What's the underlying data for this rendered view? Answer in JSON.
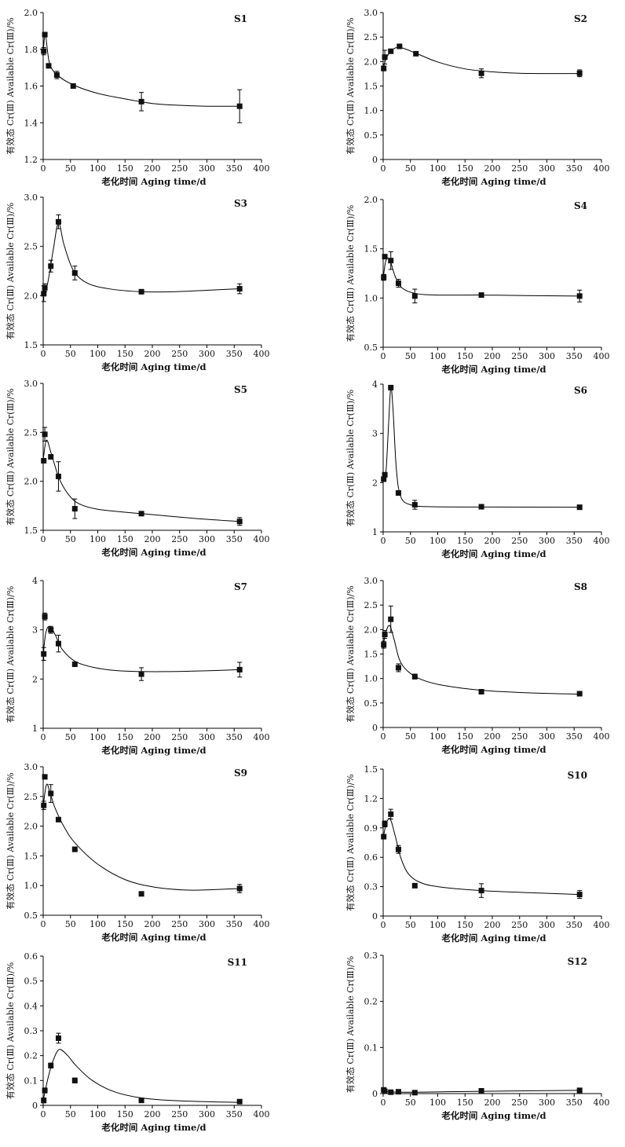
{
  "chart_data": [
    {
      "type": "scatter",
      "title": "S1",
      "xlabel": "老化时间 Aging time/d",
      "ylabel": "有效态 Cr(Ⅲ) Available Cr(Ⅲ)/%",
      "xlim": [
        0,
        400
      ],
      "xticks": [
        0,
        50,
        100,
        150,
        200,
        250,
        300,
        350,
        400
      ],
      "ylim": [
        1.2,
        2.0
      ],
      "yticks": [
        "1.2",
        "1.4",
        "1.6",
        "1.8",
        "2.0"
      ],
      "points": [
        {
          "x": 1,
          "y": 1.79,
          "err": 0.02
        },
        {
          "x": 3,
          "y": 1.88,
          "err": 0.01
        },
        {
          "x": 10,
          "y": 1.71,
          "err": 0.01
        },
        {
          "x": 25,
          "y": 1.66,
          "err": 0.02
        },
        {
          "x": 55,
          "y": 1.6,
          "err": 0.01
        },
        {
          "x": 180,
          "y": 1.515,
          "err": 0.05
        },
        {
          "x": 360,
          "y": 1.49,
          "err": 0.09
        }
      ],
      "curve": [
        [
          0,
          1.78
        ],
        [
          4,
          1.88
        ],
        [
          12,
          1.72
        ],
        [
          30,
          1.65
        ],
        [
          60,
          1.6
        ],
        [
          100,
          1.56
        ],
        [
          150,
          1.53
        ],
        [
          200,
          1.505
        ],
        [
          250,
          1.495
        ],
        [
          300,
          1.49
        ],
        [
          360,
          1.49
        ]
      ]
    },
    {
      "type": "scatter",
      "title": "S2",
      "xlabel": "老化时间 Aging time/d",
      "ylabel": "有效态 Cr(Ⅲ) Available Cr(Ⅲ)/%",
      "xlim": [
        0,
        400
      ],
      "xticks": [
        0,
        50,
        100,
        150,
        200,
        250,
        300,
        350,
        400
      ],
      "ylim": [
        0,
        3.0
      ],
      "yticks": [
        "0",
        "0.5",
        "1.0",
        "1.5",
        "2.0",
        "2.5",
        "3.0"
      ],
      "points": [
        {
          "x": 1,
          "y": 1.86,
          "err": 0.05
        },
        {
          "x": 3,
          "y": 2.09,
          "err": 0.14
        },
        {
          "x": 14,
          "y": 2.21,
          "err": 0.04
        },
        {
          "x": 30,
          "y": 2.31,
          "err": 0.03
        },
        {
          "x": 60,
          "y": 2.16,
          "err": 0.04
        },
        {
          "x": 180,
          "y": 1.76,
          "err": 0.09
        },
        {
          "x": 360,
          "y": 1.76,
          "err": 0.07
        }
      ],
      "curve": [
        [
          0,
          1.85
        ],
        [
          5,
          2.05
        ],
        [
          15,
          2.22
        ],
        [
          30,
          2.29
        ],
        [
          60,
          2.17
        ],
        [
          100,
          1.99
        ],
        [
          150,
          1.85
        ],
        [
          200,
          1.79
        ],
        [
          250,
          1.76
        ],
        [
          300,
          1.755
        ],
        [
          360,
          1.755
        ]
      ]
    },
    {
      "type": "scatter",
      "title": "S3",
      "xlabel": "老化时间 Aging time/d",
      "ylabel": "有效态 Cr(Ⅲ) Available Cr(Ⅲ)/%",
      "xlim": [
        0,
        400
      ],
      "xticks": [
        0,
        50,
        100,
        150,
        200,
        250,
        300,
        350,
        400
      ],
      "ylim": [
        1.5,
        3.0
      ],
      "yticks": [
        "1.5",
        "2.0",
        "2.5",
        "3.0"
      ],
      "points": [
        {
          "x": 1,
          "y": 2.02,
          "err": 0.08
        },
        {
          "x": 3,
          "y": 2.08,
          "err": 0.04
        },
        {
          "x": 14,
          "y": 2.3,
          "err": 0.06
        },
        {
          "x": 28,
          "y": 2.75,
          "err": 0.07
        },
        {
          "x": 58,
          "y": 2.23,
          "err": 0.07
        },
        {
          "x": 180,
          "y": 2.04,
          "err": 0.01
        },
        {
          "x": 360,
          "y": 2.07,
          "err": 0.05
        }
      ],
      "curve": [
        [
          0,
          1.98
        ],
        [
          8,
          2.12
        ],
        [
          18,
          2.45
        ],
        [
          28,
          2.74
        ],
        [
          38,
          2.52
        ],
        [
          55,
          2.26
        ],
        [
          80,
          2.13
        ],
        [
          120,
          2.07
        ],
        [
          180,
          2.04
        ],
        [
          240,
          2.04
        ],
        [
          300,
          2.055
        ],
        [
          360,
          2.07
        ]
      ]
    },
    {
      "type": "scatter",
      "title": "S4",
      "xlabel": "老化时间 Aging time/d",
      "ylabel": "有效态 Cr(Ⅲ) Available Cr(Ⅲ)/%",
      "xlim": [
        0,
        400
      ],
      "xticks": [
        0,
        50,
        100,
        150,
        200,
        250,
        300,
        350,
        400
      ],
      "ylim": [
        0.5,
        2.0
      ],
      "yticks": [
        "0.5",
        "1.0",
        "1.5",
        "2.0"
      ],
      "points": [
        {
          "x": 1,
          "y": 1.21,
          "err": 0.03
        },
        {
          "x": 3,
          "y": 1.42,
          "err": 0.01
        },
        {
          "x": 14,
          "y": 1.38,
          "err": 0.09
        },
        {
          "x": 28,
          "y": 1.15,
          "err": 0.04
        },
        {
          "x": 58,
          "y": 1.02,
          "err": 0.07
        },
        {
          "x": 180,
          "y": 1.03,
          "err": 0.01
        },
        {
          "x": 360,
          "y": 1.02,
          "err": 0.06
        }
      ],
      "curve": [
        [
          0,
          1.2
        ],
        [
          5,
          1.38
        ],
        [
          12,
          1.39
        ],
        [
          22,
          1.22
        ],
        [
          35,
          1.1
        ],
        [
          60,
          1.045
        ],
        [
          100,
          1.03
        ],
        [
          180,
          1.03
        ],
        [
          260,
          1.025
        ],
        [
          360,
          1.02
        ]
      ]
    },
    {
      "type": "scatter",
      "title": "S5",
      "xlabel": "老化时间 Aging time/d",
      "ylabel": "有效态 Cr(Ⅲ) Available Cr(Ⅲ)/%",
      "xlim": [
        0,
        400
      ],
      "xticks": [
        0,
        50,
        100,
        150,
        200,
        250,
        300,
        350,
        400
      ],
      "ylim": [
        1.5,
        3.0
      ],
      "yticks": [
        "1.5",
        "2.0",
        "2.5",
        "3.0"
      ],
      "points": [
        {
          "x": 1,
          "y": 2.21,
          "err": 0.02
        },
        {
          "x": 3,
          "y": 2.48,
          "err": 0.07
        },
        {
          "x": 14,
          "y": 2.25,
          "err": 0.02
        },
        {
          "x": 28,
          "y": 2.05,
          "err": 0.15
        },
        {
          "x": 58,
          "y": 1.72,
          "err": 0.1
        },
        {
          "x": 180,
          "y": 1.67,
          "err": 0.01
        },
        {
          "x": 360,
          "y": 1.59,
          "err": 0.04
        }
      ],
      "curve": [
        [
          0,
          2.22
        ],
        [
          6,
          2.42
        ],
        [
          15,
          2.28
        ],
        [
          30,
          2.02
        ],
        [
          50,
          1.84
        ],
        [
          70,
          1.76
        ],
        [
          100,
          1.715
        ],
        [
          150,
          1.685
        ],
        [
          200,
          1.66
        ],
        [
          280,
          1.62
        ],
        [
          360,
          1.59
        ]
      ]
    },
    {
      "type": "scatter",
      "title": "S6",
      "xlabel": "老化时间 Aging time/d",
      "ylabel": "有效态 Cr(Ⅲ) Available Cr(Ⅲ)/%",
      "xlim": [
        0,
        400
      ],
      "xticks": [
        0,
        50,
        100,
        150,
        200,
        250,
        300,
        350,
        400
      ],
      "ylim": [
        1,
        4
      ],
      "yticks": [
        "1",
        "2",
        "3",
        "4"
      ],
      "points": [
        {
          "x": 1,
          "y": 2.07,
          "err": 0.02
        },
        {
          "x": 3,
          "y": 2.16,
          "err": 0.02
        },
        {
          "x": 14,
          "y": 3.93,
          "err": 0.04
        },
        {
          "x": 28,
          "y": 1.79,
          "err": 0.02
        },
        {
          "x": 58,
          "y": 1.55,
          "err": 0.09
        },
        {
          "x": 180,
          "y": 1.51,
          "err": 0.02
        },
        {
          "x": 360,
          "y": 1.5,
          "err": 0.02
        }
      ],
      "curve": [
        [
          0,
          2.05
        ],
        [
          5,
          2.2
        ],
        [
          10,
          3.2
        ],
        [
          14,
          3.93
        ],
        [
          18,
          3.5
        ],
        [
          24,
          2.3
        ],
        [
          32,
          1.72
        ],
        [
          50,
          1.55
        ],
        [
          90,
          1.51
        ],
        [
          200,
          1.505
        ],
        [
          360,
          1.5
        ]
      ]
    },
    {
      "type": "scatter",
      "title": "S7",
      "xlabel": "老化时间 Aging time/d",
      "ylabel": "有效态 Cr(Ⅲ) Available Cr(Ⅲ)/%",
      "xlim": [
        0,
        400
      ],
      "xticks": [
        0,
        50,
        100,
        150,
        200,
        250,
        300,
        350,
        400
      ],
      "ylim": [
        1,
        4
      ],
      "yticks": [
        "1",
        "2",
        "3",
        "4"
      ],
      "points": [
        {
          "x": 1,
          "y": 2.51,
          "err": 0.13
        },
        {
          "x": 3,
          "y": 3.27,
          "err": 0.07
        },
        {
          "x": 14,
          "y": 3.0,
          "err": 0.07
        },
        {
          "x": 28,
          "y": 2.72,
          "err": 0.17
        },
        {
          "x": 58,
          "y": 2.3,
          "err": 0.02
        },
        {
          "x": 180,
          "y": 2.1,
          "err": 0.13
        },
        {
          "x": 360,
          "y": 2.19,
          "err": 0.15
        }
      ],
      "curve": [
        [
          0,
          2.5
        ],
        [
          5,
          2.95
        ],
        [
          12,
          3.07
        ],
        [
          22,
          2.9
        ],
        [
          35,
          2.6
        ],
        [
          60,
          2.35
        ],
        [
          100,
          2.22
        ],
        [
          150,
          2.16
        ],
        [
          220,
          2.15
        ],
        [
          290,
          2.165
        ],
        [
          360,
          2.19
        ]
      ]
    },
    {
      "type": "scatter",
      "title": "S8",
      "xlabel": "老化时间 Aging time/d",
      "ylabel": "有效态 Cr(Ⅲ) Available Cr(Ⅲ)/%",
      "xlim": [
        0,
        400
      ],
      "xticks": [
        0,
        50,
        100,
        150,
        200,
        250,
        300,
        350,
        400
      ],
      "ylim": [
        0,
        3.0
      ],
      "yticks": [
        "0",
        "0.5",
        "1.0",
        "1.5",
        "2.0",
        "2.5",
        "3.0"
      ],
      "points": [
        {
          "x": 1,
          "y": 1.69,
          "err": 0.07
        },
        {
          "x": 3,
          "y": 1.9,
          "err": 0.08
        },
        {
          "x": 14,
          "y": 2.21,
          "err": 0.27
        },
        {
          "x": 28,
          "y": 1.22,
          "err": 0.08
        },
        {
          "x": 58,
          "y": 1.04,
          "err": 0.05
        },
        {
          "x": 180,
          "y": 0.73,
          "err": 0.02
        },
        {
          "x": 360,
          "y": 0.69,
          "err": 0.03
        }
      ],
      "curve": [
        [
          0,
          1.67
        ],
        [
          5,
          1.95
        ],
        [
          12,
          2.08
        ],
        [
          20,
          1.8
        ],
        [
          30,
          1.38
        ],
        [
          45,
          1.15
        ],
        [
          70,
          0.98
        ],
        [
          110,
          0.86
        ],
        [
          180,
          0.76
        ],
        [
          260,
          0.71
        ],
        [
          360,
          0.68
        ]
      ]
    },
    {
      "type": "scatter",
      "title": "S9",
      "xlabel": "老化时间 Aging time/d",
      "ylabel": "有效态 Cr(Ⅲ) Available Cr(Ⅲ)/%",
      "xlim": [
        0,
        400
      ],
      "xticks": [
        0,
        50,
        100,
        150,
        200,
        250,
        300,
        350,
        400
      ],
      "ylim": [
        0.5,
        3.0
      ],
      "yticks": [
        "0.5",
        "1.0",
        "1.5",
        "2.0",
        "2.5",
        "3.0"
      ],
      "points": [
        {
          "x": 1,
          "y": 2.35,
          "err": 0.07
        },
        {
          "x": 3,
          "y": 2.83,
          "err": 0.03
        },
        {
          "x": 14,
          "y": 2.55,
          "err": 0.15
        },
        {
          "x": 28,
          "y": 2.11,
          "err": 0.02
        },
        {
          "x": 58,
          "y": 1.61,
          "err": 0.04
        },
        {
          "x": 180,
          "y": 0.86,
          "err": 0.02
        },
        {
          "x": 360,
          "y": 0.95,
          "err": 0.07
        }
      ],
      "curve": [
        [
          0,
          2.34
        ],
        [
          6,
          2.7
        ],
        [
          12,
          2.58
        ],
        [
          22,
          2.3
        ],
        [
          40,
          1.96
        ],
        [
          60,
          1.7
        ],
        [
          100,
          1.36
        ],
        [
          150,
          1.1
        ],
        [
          200,
          0.98
        ],
        [
          260,
          0.925
        ],
        [
          310,
          0.93
        ],
        [
          360,
          0.95
        ]
      ]
    },
    {
      "type": "scatter",
      "title": "S10",
      "xlabel": "老化时间 Aging time/d",
      "ylabel": "有效态 Cr(Ⅲ) Available Cr(Ⅲ)/%",
      "xlim": [
        0,
        400
      ],
      "xticks": [
        0,
        50,
        100,
        150,
        200,
        250,
        300,
        350,
        400
      ],
      "ylim": [
        0,
        1.5
      ],
      "yticks": [
        "0",
        "0.3",
        "0.6",
        "0.9",
        "1.2",
        "1.5"
      ],
      "points": [
        {
          "x": 1,
          "y": 0.81,
          "err": 0.02
        },
        {
          "x": 3,
          "y": 0.94,
          "err": 0.03
        },
        {
          "x": 14,
          "y": 1.04,
          "err": 0.05
        },
        {
          "x": 28,
          "y": 0.68,
          "err": 0.04
        },
        {
          "x": 58,
          "y": 0.31,
          "err": 0.01
        },
        {
          "x": 180,
          "y": 0.26,
          "err": 0.07
        },
        {
          "x": 360,
          "y": 0.22,
          "err": 0.04
        }
      ],
      "curve": [
        [
          0,
          0.8
        ],
        [
          6,
          0.95
        ],
        [
          13,
          0.99
        ],
        [
          22,
          0.82
        ],
        [
          32,
          0.6
        ],
        [
          45,
          0.44
        ],
        [
          65,
          0.35
        ],
        [
          100,
          0.3
        ],
        [
          180,
          0.26
        ],
        [
          260,
          0.24
        ],
        [
          360,
          0.22
        ]
      ]
    },
    {
      "type": "scatter",
      "title": "S11",
      "xlabel": "老化时间 Aging time/d",
      "ylabel": "有效态 Cr(Ⅲ) Available Cr(Ⅲ)/%",
      "xlim": [
        0,
        400
      ],
      "xticks": [
        0,
        50,
        100,
        150,
        200,
        250,
        300,
        350,
        400
      ],
      "ylim": [
        0,
        0.6
      ],
      "yticks": [
        "0",
        "0.1",
        "0.2",
        "0.3",
        "0.4",
        "0.5",
        "0.6"
      ],
      "points": [
        {
          "x": 1,
          "y": 0.02,
          "err": 0.01
        },
        {
          "x": 3,
          "y": 0.06,
          "err": 0.01
        },
        {
          "x": 14,
          "y": 0.16,
          "err": 0.01
        },
        {
          "x": 28,
          "y": 0.27,
          "err": 0.02
        },
        {
          "x": 58,
          "y": 0.1,
          "err": 0.01
        },
        {
          "x": 180,
          "y": 0.02,
          "err": 0.005
        },
        {
          "x": 360,
          "y": 0.015,
          "err": 0.005
        }
      ],
      "curve": [
        [
          0,
          0.02
        ],
        [
          10,
          0.12
        ],
        [
          20,
          0.19
        ],
        [
          30,
          0.225
        ],
        [
          45,
          0.2
        ],
        [
          60,
          0.16
        ],
        [
          90,
          0.1
        ],
        [
          130,
          0.055
        ],
        [
          180,
          0.03
        ],
        [
          250,
          0.018
        ],
        [
          360,
          0.012
        ]
      ]
    },
    {
      "type": "scatter",
      "title": "S12",
      "xlabel": "老化时间 Aging time/d",
      "ylabel": "有效态 Cr(Ⅲ) Available Cr(Ⅲ)/%",
      "xlim": [
        0,
        400
      ],
      "xticks": [
        0,
        50,
        100,
        150,
        200,
        250,
        300,
        350,
        400
      ],
      "ylim": [
        0,
        0.3
      ],
      "yticks": [
        "0",
        "0.1",
        "0.2",
        "0.3"
      ],
      "points": [
        {
          "x": 1,
          "y": 0.008,
          "err": 0.002
        },
        {
          "x": 3,
          "y": 0.005,
          "err": 0.002
        },
        {
          "x": 14,
          "y": 0.003,
          "err": 0.001
        },
        {
          "x": 28,
          "y": 0.004,
          "err": 0.001
        },
        {
          "x": 58,
          "y": 0.002,
          "err": 0.001
        },
        {
          "x": 180,
          "y": 0.006,
          "err": 0.001
        },
        {
          "x": 360,
          "y": 0.007,
          "err": 0.001
        }
      ],
      "curve": [
        [
          0,
          0.006
        ],
        [
          10,
          0.004
        ],
        [
          30,
          0.003
        ],
        [
          60,
          0.003
        ],
        [
          120,
          0.004
        ],
        [
          180,
          0.005
        ],
        [
          260,
          0.006
        ],
        [
          360,
          0.007
        ]
      ]
    }
  ]
}
